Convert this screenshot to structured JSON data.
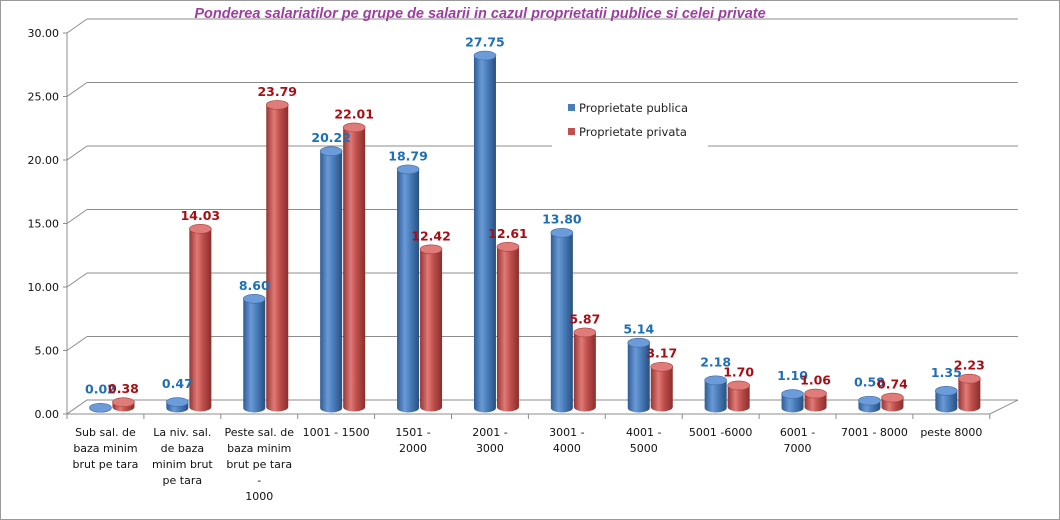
{
  "chart_data": {
    "type": "bar",
    "style": "3d-cylinder",
    "title": "Ponderea salariatilor pe grupe de salarii in cazul proprietatii publice si celei private",
    "xlabel": "",
    "ylabel": "",
    "ylim": [
      0,
      30
    ],
    "yticks": [
      "0.00",
      "5.00",
      "10.00",
      "15.00",
      "20.00",
      "25.00",
      "30.00"
    ],
    "grid": true,
    "legend_position": "top-right",
    "categories": [
      "Sub sal. de baza minim brut pe tara",
      "La niv. sal. de baza minim brut pe tara",
      "Peste sal. de baza minim brut pe tara - 1000",
      "1001 - 1500",
      "1501 - 2000",
      "2001 - 3000",
      "3001 - 4000",
      "4001 - 5000",
      "5001 -6000",
      "6001 - 7000",
      "7001 - 8000",
      "peste 8000"
    ],
    "category_label_lines": [
      [
        "Sub sal. de",
        "baza minim",
        "brut pe tara"
      ],
      [
        "La niv. sal.",
        "de baza",
        "minim brut",
        "pe tara"
      ],
      [
        "Peste sal. de",
        "baza minim",
        "brut pe tara",
        "-",
        "1000"
      ],
      [
        "1001 - 1500"
      ],
      [
        "1501 -",
        "2000"
      ],
      [
        "2001 -",
        "3000"
      ],
      [
        "3001 -",
        "4000"
      ],
      [
        "4001 -",
        "5000"
      ],
      [
        "5001 -6000"
      ],
      [
        "6001 -",
        "7000"
      ],
      [
        "7001 - 8000"
      ],
      [
        "peste 8000"
      ]
    ],
    "series": [
      {
        "name": "Proprietate publica",
        "color": "#4a7ebb",
        "label_color": "#1f6fb5",
        "values": [
          0.02,
          0.47,
          8.6,
          20.22,
          18.79,
          27.75,
          13.8,
          5.14,
          2.18,
          1.1,
          0.58,
          1.35
        ],
        "labels": [
          "0.02",
          "0.47",
          "8.60",
          "20.22",
          "18.79",
          "27.75",
          "13.80",
          "5.14",
          "2.18",
          "1.10",
          "0.58",
          "1.35"
        ]
      },
      {
        "name": "Proprietate privata",
        "color": "#c0504d",
        "label_color": "#a50f15",
        "values": [
          0.38,
          14.03,
          23.79,
          22.01,
          12.42,
          12.61,
          5.87,
          3.17,
          1.7,
          1.06,
          0.74,
          2.23
        ],
        "labels": [
          "0.38",
          "14.03",
          "23.79",
          "22.01",
          "12.42",
          "12.61",
          "5.87",
          "3.17",
          "1.70",
          "1.06",
          "0.74",
          "2.23"
        ]
      }
    ]
  }
}
